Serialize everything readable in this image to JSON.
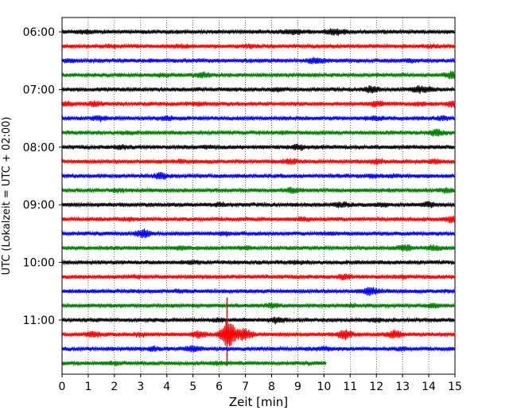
{
  "chart_data": {
    "type": "line",
    "title": "",
    "xlabel": "Zeit  [min]",
    "ylabel": "UTC (Lokalzeit = UTC + 02:00)",
    "xlim": [
      0,
      15
    ],
    "x_ticks": [
      0,
      1,
      2,
      3,
      4,
      5,
      6,
      7,
      8,
      9,
      10,
      11,
      12,
      13,
      14,
      15
    ],
    "y_tick_labels": [
      "06:00",
      "07:00",
      "08:00",
      "09:00",
      "10:00",
      "11:00"
    ],
    "y_tick_rows": [
      0,
      4,
      8,
      12,
      16,
      20
    ],
    "grid": "vertical dotted lines at each minute",
    "trace_minutes": 15,
    "colors": [
      "#000000",
      "#ff0000",
      "#0000ff",
      "#008000"
    ],
    "traces": [
      {
        "start": "06:00",
        "color": "#000000",
        "end_min": 15,
        "events": [
          [
            0.85,
            0.25
          ],
          [
            10.3,
            0.4
          ],
          [
            10.7,
            0.3
          ],
          [
            8.7,
            0.2
          ],
          [
            9.0,
            0.18
          ]
        ]
      },
      {
        "start": "06:15",
        "color": "#ff0000",
        "end_min": 15,
        "events": [
          [
            1.9,
            0.18
          ],
          [
            4.5,
            0.15
          ],
          [
            7.2,
            0.2
          ],
          [
            14.2,
            0.15
          ]
        ]
      },
      {
        "start": "06:30",
        "color": "#0000ff",
        "end_min": 15,
        "events": [
          [
            9.6,
            0.3
          ],
          [
            10.0,
            0.2
          ],
          [
            13.3,
            0.2
          ],
          [
            0.3,
            0.15
          ]
        ]
      },
      {
        "start": "06:45",
        "color": "#008000",
        "end_min": 15,
        "events": [
          [
            5.4,
            0.4
          ],
          [
            14.9,
            0.6
          ],
          [
            3.9,
            0.15
          ]
        ]
      },
      {
        "start": "07:00",
        "color": "#000000",
        "end_min": 15,
        "events": [
          [
            11.8,
            0.45
          ],
          [
            13.6,
            0.45
          ],
          [
            8.2,
            0.2
          ],
          [
            14.0,
            0.25
          ]
        ]
      },
      {
        "start": "07:15",
        "color": "#ff0000",
        "end_min": 15,
        "events": [
          [
            0.2,
            0.3
          ],
          [
            1.2,
            0.35
          ],
          [
            12.0,
            0.35
          ],
          [
            14.9,
            0.5
          ],
          [
            5.2,
            0.2
          ],
          [
            13.7,
            0.2
          ]
        ]
      },
      {
        "start": "07:30",
        "color": "#0000ff",
        "end_min": 15,
        "events": [
          [
            1.4,
            0.3
          ],
          [
            4.0,
            0.3
          ],
          [
            12.0,
            0.2
          ],
          [
            14.5,
            0.2
          ]
        ]
      },
      {
        "start": "07:45",
        "color": "#008000",
        "end_min": 15,
        "events": [
          [
            14.3,
            0.5
          ],
          [
            8.5,
            0.15
          ],
          [
            2.5,
            0.15
          ]
        ]
      },
      {
        "start": "08:00",
        "color": "#000000",
        "end_min": 15,
        "events": [
          [
            2.3,
            0.22
          ],
          [
            9.0,
            0.4
          ],
          [
            5.5,
            0.15
          ]
        ]
      },
      {
        "start": "08:15",
        "color": "#ff0000",
        "end_min": 15,
        "events": [
          [
            12.0,
            0.3
          ],
          [
            8.7,
            0.35
          ],
          [
            4.5,
            0.15
          ],
          [
            14.2,
            0.25
          ]
        ]
      },
      {
        "start": "08:30",
        "color": "#0000ff",
        "end_min": 15,
        "events": [
          [
            3.8,
            0.45
          ],
          [
            11.9,
            0.2
          ],
          [
            12.6,
            0.15
          ]
        ]
      },
      {
        "start": "08:45",
        "color": "#008000",
        "end_min": 15,
        "events": [
          [
            8.8,
            0.35
          ],
          [
            14.7,
            0.3
          ],
          [
            2.2,
            0.15
          ]
        ]
      },
      {
        "start": "09:00",
        "color": "#000000",
        "end_min": 15,
        "events": [
          [
            10.7,
            0.3
          ],
          [
            14.0,
            0.35
          ],
          [
            6.0,
            0.2
          ],
          [
            12.2,
            0.2
          ]
        ]
      },
      {
        "start": "09:15",
        "color": "#ff0000",
        "end_min": 15,
        "events": [
          [
            14.9,
            0.55
          ],
          [
            9.2,
            0.2
          ],
          [
            2.5,
            0.15
          ]
        ]
      },
      {
        "start": "09:30",
        "color": "#0000ff",
        "end_min": 15,
        "events": [
          [
            3.1,
            0.6
          ],
          [
            6.2,
            0.2
          ],
          [
            10.2,
            0.15
          ]
        ]
      },
      {
        "start": "09:45",
        "color": "#008000",
        "end_min": 15,
        "events": [
          [
            13.1,
            0.45
          ],
          [
            14.2,
            0.35
          ],
          [
            7.0,
            0.2
          ],
          [
            4.6,
            0.2
          ]
        ]
      },
      {
        "start": "10:00",
        "color": "#000000",
        "end_min": 15,
        "events": [
          [
            5.0,
            0.15
          ],
          [
            9.0,
            0.15
          ]
        ]
      },
      {
        "start": "10:15",
        "color": "#ff0000",
        "end_min": 15,
        "events": [
          [
            10.8,
            0.35
          ],
          [
            2.8,
            0.15
          ],
          [
            13.0,
            0.15
          ]
        ]
      },
      {
        "start": "10:30",
        "color": "#0000ff",
        "end_min": 15,
        "events": [
          [
            11.7,
            0.5
          ],
          [
            12.0,
            0.25
          ],
          [
            4.5,
            0.15
          ]
        ]
      },
      {
        "start": "10:45",
        "color": "#008000",
        "end_min": 15,
        "events": [
          [
            8.0,
            0.3
          ],
          [
            14.2,
            0.25
          ],
          [
            11.0,
            0.15
          ]
        ]
      },
      {
        "start": "11:00",
        "color": "#000000",
        "end_min": 15,
        "events": [
          [
            8.2,
            0.45
          ],
          [
            6.0,
            0.2
          ],
          [
            12.0,
            0.2
          ]
        ]
      },
      {
        "start": "11:15",
        "color": "#ff0000",
        "end_min": 15,
        "events": [
          [
            1.2,
            0.4
          ],
          [
            5.2,
            0.5
          ],
          [
            6.3,
            2.5
          ],
          [
            7.0,
            0.9
          ],
          [
            6.6,
            0.5
          ],
          [
            10.8,
            0.8
          ],
          [
            12.7,
            0.6
          ],
          [
            3.0,
            0.2
          ]
        ],
        "spike": {
          "x": 6.3,
          "y": 2.5
        }
      },
      {
        "start": "11:30",
        "color": "#0000ff",
        "end_min": 15,
        "events": [
          [
            5.0,
            0.45
          ],
          [
            3.5,
            0.2
          ],
          [
            10.0,
            0.2
          ],
          [
            13.0,
            0.2
          ]
        ]
      },
      {
        "start": "11:45",
        "color": "#008000",
        "end_min": 10.1,
        "events": [
          [
            2.0,
            0.15
          ],
          [
            6.0,
            0.15
          ]
        ]
      }
    ]
  }
}
